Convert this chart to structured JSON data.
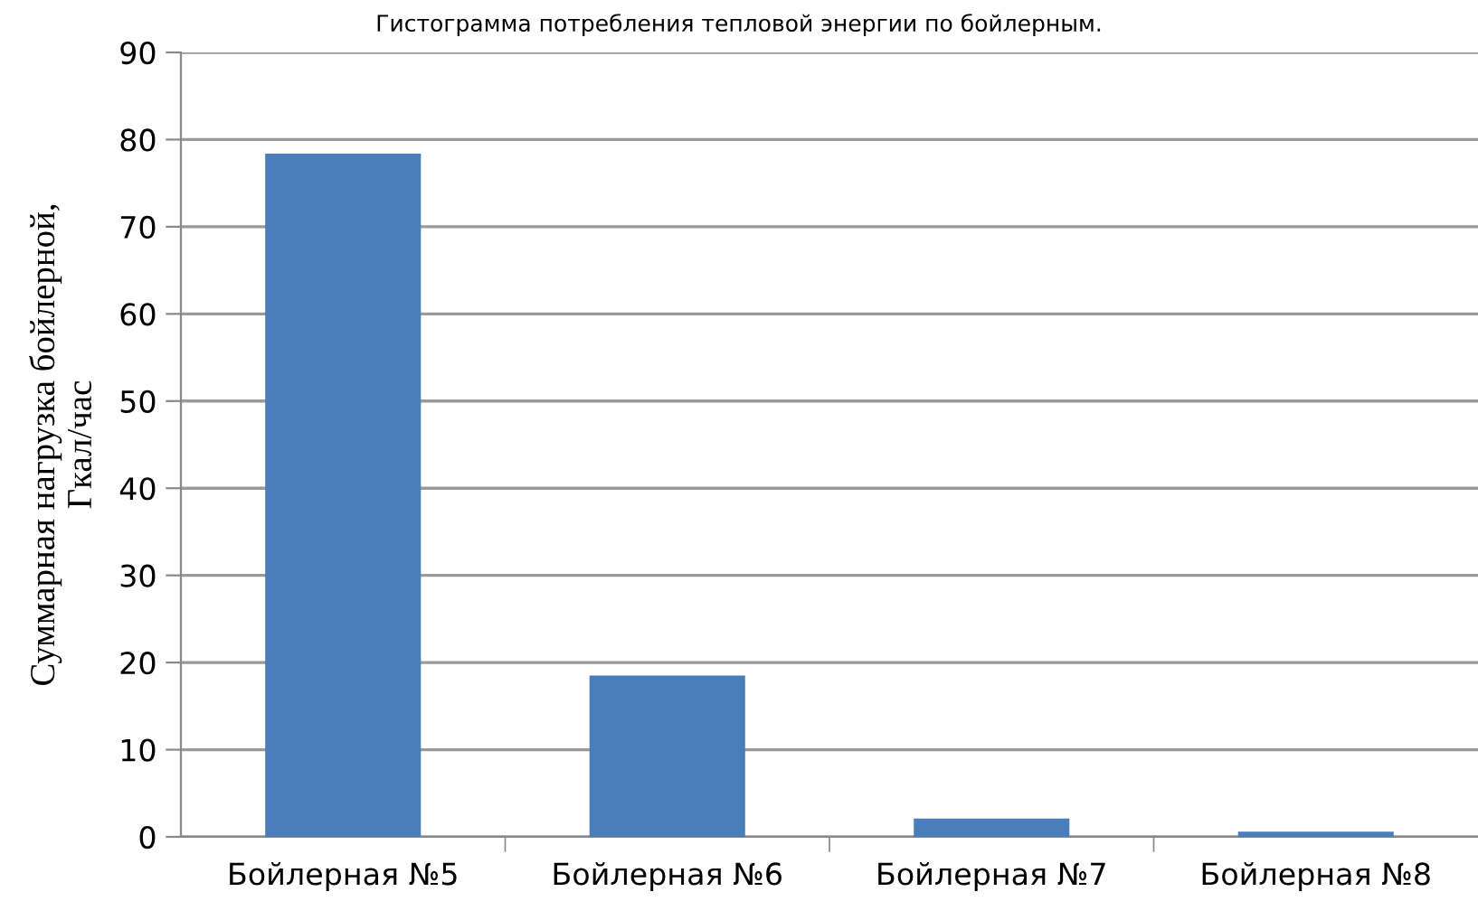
{
  "chart_data": {
    "type": "bar",
    "title": "Гистограмма потребления тепловой энергии по бойлерным.",
    "ylabel": "Суммарная нагрузка бойлерной,\nГкал/час",
    "categories": [
      "Бойлерная №5",
      "Бойлерная №6",
      "Бойлерная №7",
      "Бойлерная №8"
    ],
    "values": [
      78.4,
      18.5,
      2.1,
      0.6
    ],
    "color": "#4a7ebb",
    "ylim": [
      0,
      90
    ],
    "yticks": [
      0,
      10,
      20,
      30,
      40,
      50,
      60,
      70,
      80,
      90
    ],
    "grid": "y"
  }
}
